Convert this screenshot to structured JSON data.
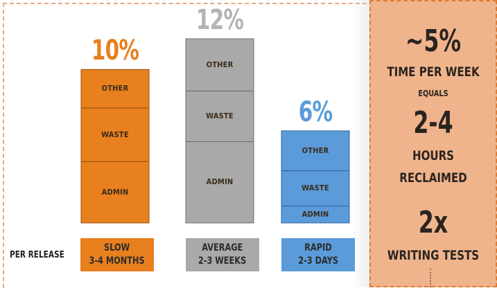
{
  "chart_data": {
    "type": "bar",
    "stacked": true,
    "categories": [
      "SLOW 3-4 MONTHS",
      "AVERAGE 2-3 WEEKS",
      "RAPID 2-3 DAYS"
    ],
    "category_lines": [
      [
        "SLOW",
        "3-4 MONTHS"
      ],
      [
        "AVERAGE",
        "2-3 WEEKS"
      ],
      [
        "RAPID",
        "2-3 DAYS"
      ]
    ],
    "totals": [
      10,
      12,
      6
    ],
    "total_labels": [
      "10%",
      "12%",
      "6%"
    ],
    "series": [
      {
        "name": "ADMIN",
        "values": [
          4.0,
          5.3,
          1.1
        ]
      },
      {
        "name": "WASTE",
        "values": [
          3.5,
          3.3,
          2.3
        ]
      },
      {
        "name": "OTHER",
        "values": [
          2.5,
          3.4,
          2.6
        ]
      }
    ],
    "colors": [
      "#e8801e",
      "#a9a9a9",
      "#5b9bd9"
    ],
    "label_colors": [
      "#e8801e",
      "#b3b3b3",
      "#5b9bd9"
    ],
    "row_label": "PER RELEASE",
    "ylim": [
      0,
      12
    ]
  },
  "summary": {
    "line1": "~5%",
    "line2": "TIME PER WEEK",
    "line3": "EQUALS",
    "line4": "2-4",
    "line5": "HOURS",
    "line6": "RECLAIMED",
    "line7": "2x",
    "line8": "WRITING TESTS"
  }
}
